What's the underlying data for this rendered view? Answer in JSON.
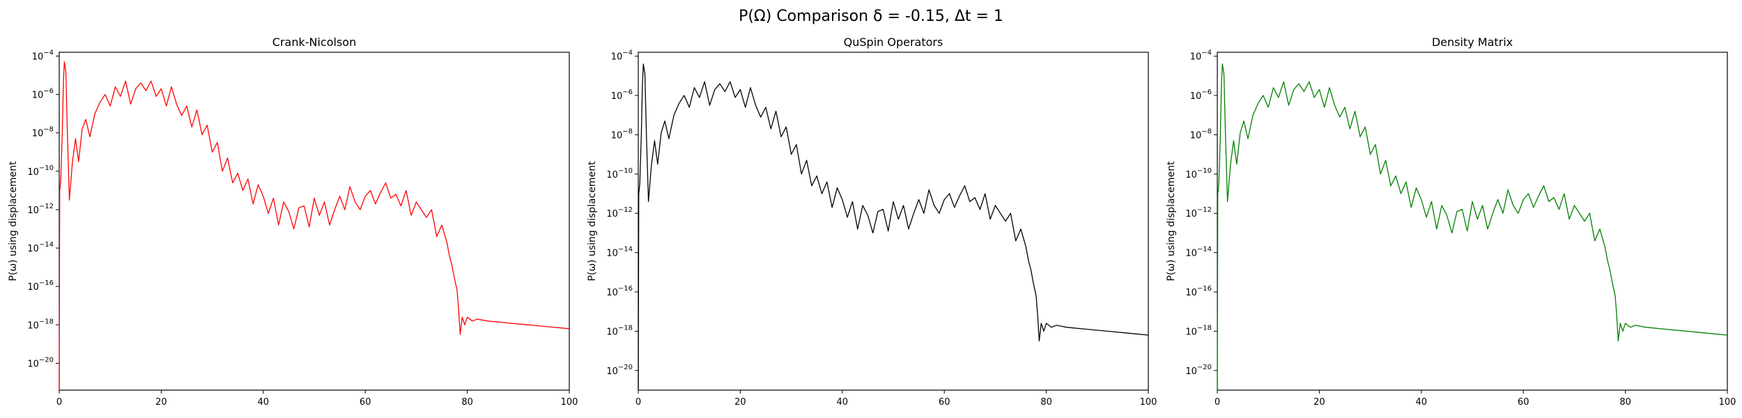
{
  "figure": {
    "title": "P(Ω) Comparison δ = -0.15, Δt = 1"
  },
  "chart_data": [
    {
      "type": "line",
      "title": "Crank-Nicolson",
      "xlabel": "",
      "ylabel": "P(ω) using displacement",
      "xlim": [
        0,
        100
      ],
      "ylim_log10": [
        -21.4,
        -3.8
      ],
      "yscale": "log",
      "x_ticks": [
        "0",
        "20",
        "40",
        "60",
        "80",
        "100"
      ],
      "y_ticks": [
        {
          "base": "10",
          "exp": "−4"
        },
        {
          "base": "10",
          "exp": "−6"
        },
        {
          "base": "10",
          "exp": "−8"
        },
        {
          "base": "10",
          "exp": "−10"
        },
        {
          "base": "10",
          "exp": "−12"
        },
        {
          "base": "10",
          "exp": "−14"
        },
        {
          "base": "10",
          "exp": "−16"
        },
        {
          "base": "10",
          "exp": "−18"
        },
        {
          "base": "10",
          "exp": "−20"
        }
      ],
      "color": "#ff0000",
      "series": [
        {
          "x": [
            0,
            0.1,
            0.3,
            0.6,
            0.8,
            1.0,
            1.3,
            1.6,
            2.0,
            2.6,
            3.2,
            3.8,
            4.5,
            5.2,
            6.0,
            7.0,
            8.0,
            9.0,
            10.0,
            11.0,
            12.0,
            13.0,
            14.0,
            15.0,
            16.0,
            17.0,
            18.0,
            19.0,
            20.0,
            21.0,
            22.0,
            23.0,
            24.0,
            25.0,
            26.0,
            27.0,
            28.0,
            29.0,
            30.0,
            31.0,
            32.0,
            33.0,
            34.0,
            35.0,
            36.0,
            37.0,
            38.0,
            39.0,
            40.0,
            41.0,
            42.0,
            43.0,
            44.0,
            45.0,
            46.0,
            47.0,
            48.0,
            49.0,
            50.0,
            51.0,
            52.0,
            53.0,
            54.0,
            55.0,
            56.0,
            57.0,
            58.0,
            59.0,
            60.0,
            61.0,
            62.0,
            63.0,
            64.0,
            65.0,
            66.0,
            67.0,
            68.0,
            69.0,
            70.0,
            71.0,
            72.0,
            73.0,
            74.0,
            75.0,
            76.0,
            76.5,
            77.0,
            77.5,
            78.0,
            78.3,
            78.6,
            79.0,
            79.5,
            80.0,
            81.0,
            82.0,
            84.0,
            88.0,
            92.0,
            96.0,
            100.0
          ],
          "y_log10": [
            -21.4,
            -11.0,
            -10.5,
            -8.0,
            -5.5,
            -4.3,
            -4.8,
            -8.0,
            -11.5,
            -9.5,
            -8.3,
            -9.5,
            -7.8,
            -7.3,
            -8.2,
            -7.0,
            -6.4,
            -6.0,
            -6.6,
            -5.6,
            -6.1,
            -5.3,
            -6.5,
            -5.7,
            -5.4,
            -5.8,
            -5.3,
            -6.1,
            -5.7,
            -6.6,
            -5.6,
            -6.5,
            -7.1,
            -6.6,
            -7.7,
            -6.8,
            -8.1,
            -7.6,
            -9.0,
            -8.5,
            -10.0,
            -9.3,
            -10.6,
            -10.1,
            -11.0,
            -10.4,
            -11.7,
            -10.7,
            -11.3,
            -12.2,
            -11.4,
            -12.8,
            -11.6,
            -12.1,
            -13.0,
            -11.9,
            -11.8,
            -12.9,
            -11.4,
            -12.3,
            -11.6,
            -12.8,
            -12.0,
            -11.3,
            -12.0,
            -10.8,
            -11.6,
            -12.0,
            -11.3,
            -11.0,
            -11.7,
            -11.1,
            -10.6,
            -11.4,
            -11.2,
            -11.8,
            -11.0,
            -12.3,
            -11.6,
            -12.0,
            -12.4,
            -12.0,
            -13.4,
            -12.8,
            -13.7,
            -14.4,
            -14.9,
            -15.6,
            -16.2,
            -17.2,
            -18.5,
            -17.6,
            -18.0,
            -17.6,
            -17.8,
            -17.7,
            -17.8,
            -17.9,
            -18.0,
            -18.1,
            -18.2
          ]
        }
      ]
    },
    {
      "type": "line",
      "title": "QuSpin Operators",
      "xlabel": "",
      "ylabel": "P(ω) using displacement",
      "xlim": [
        0,
        100
      ],
      "ylim_log10": [
        -21.0,
        -3.8
      ],
      "yscale": "log",
      "x_ticks": [
        "0",
        "20",
        "40",
        "60",
        "80",
        "100"
      ],
      "y_ticks": [
        {
          "base": "10",
          "exp": "−4"
        },
        {
          "base": "10",
          "exp": "−6"
        },
        {
          "base": "10",
          "exp": "−8"
        },
        {
          "base": "10",
          "exp": "−10"
        },
        {
          "base": "10",
          "exp": "−12"
        },
        {
          "base": "10",
          "exp": "−14"
        },
        {
          "base": "10",
          "exp": "−16"
        },
        {
          "base": "10",
          "exp": "−18"
        },
        {
          "base": "10",
          "exp": "−20"
        }
      ],
      "color": "#000000",
      "series": [
        {
          "x": [
            0,
            0.1,
            0.3,
            0.6,
            0.8,
            1.0,
            1.3,
            1.6,
            2.0,
            2.6,
            3.2,
            3.8,
            4.5,
            5.2,
            6.0,
            7.0,
            8.0,
            9.0,
            10.0,
            11.0,
            12.0,
            13.0,
            14.0,
            15.0,
            16.0,
            17.0,
            18.0,
            19.0,
            20.0,
            21.0,
            22.0,
            23.0,
            24.0,
            25.0,
            26.0,
            27.0,
            28.0,
            29.0,
            30.0,
            31.0,
            32.0,
            33.0,
            34.0,
            35.0,
            36.0,
            37.0,
            38.0,
            39.0,
            40.0,
            41.0,
            42.0,
            43.0,
            44.0,
            45.0,
            46.0,
            47.0,
            48.0,
            49.0,
            50.0,
            51.0,
            52.0,
            53.0,
            54.0,
            55.0,
            56.0,
            57.0,
            58.0,
            59.0,
            60.0,
            61.0,
            62.0,
            63.0,
            64.0,
            65.0,
            66.0,
            67.0,
            68.0,
            69.0,
            70.0,
            71.0,
            72.0,
            73.0,
            74.0,
            75.0,
            76.0,
            76.5,
            77.0,
            77.5,
            78.0,
            78.3,
            78.6,
            79.0,
            79.5,
            80.0,
            81.0,
            82.0,
            84.0,
            88.0,
            92.0,
            96.0,
            100.0
          ],
          "y_log10": [
            -21.0,
            -11.0,
            -10.5,
            -8.0,
            -5.5,
            -4.4,
            -4.9,
            -8.0,
            -11.4,
            -9.5,
            -8.3,
            -9.5,
            -7.9,
            -7.3,
            -8.2,
            -7.0,
            -6.4,
            -6.0,
            -6.6,
            -5.6,
            -6.1,
            -5.3,
            -6.5,
            -5.7,
            -5.4,
            -5.8,
            -5.3,
            -6.1,
            -5.7,
            -6.6,
            -5.6,
            -6.5,
            -7.1,
            -6.6,
            -7.7,
            -6.8,
            -8.1,
            -7.6,
            -9.0,
            -8.5,
            -10.0,
            -9.3,
            -10.6,
            -10.1,
            -11.0,
            -10.4,
            -11.7,
            -10.7,
            -11.3,
            -12.2,
            -11.4,
            -12.8,
            -11.6,
            -12.1,
            -13.0,
            -11.9,
            -11.8,
            -12.9,
            -11.4,
            -12.3,
            -11.6,
            -12.8,
            -12.0,
            -11.3,
            -12.0,
            -10.8,
            -11.6,
            -12.0,
            -11.3,
            -11.0,
            -11.7,
            -11.1,
            -10.6,
            -11.4,
            -11.2,
            -11.8,
            -11.0,
            -12.3,
            -11.6,
            -12.0,
            -12.4,
            -12.0,
            -13.4,
            -12.8,
            -13.7,
            -14.4,
            -14.9,
            -15.6,
            -16.2,
            -17.2,
            -18.5,
            -17.6,
            -18.0,
            -17.6,
            -17.8,
            -17.7,
            -17.8,
            -17.9,
            -18.0,
            -18.1,
            -18.2
          ]
        }
      ]
    },
    {
      "type": "line",
      "title": "Density Matrix",
      "xlabel": "",
      "ylabel": "P(ω) using displacement",
      "xlim": [
        0,
        100
      ],
      "ylim_log10": [
        -21.0,
        -3.8
      ],
      "yscale": "log",
      "x_ticks": [
        "0",
        "20",
        "40",
        "60",
        "80",
        "100"
      ],
      "y_ticks": [
        {
          "base": "10",
          "exp": "−4"
        },
        {
          "base": "10",
          "exp": "−6"
        },
        {
          "base": "10",
          "exp": "−8"
        },
        {
          "base": "10",
          "exp": "−10"
        },
        {
          "base": "10",
          "exp": "−12"
        },
        {
          "base": "10",
          "exp": "−14"
        },
        {
          "base": "10",
          "exp": "−16"
        },
        {
          "base": "10",
          "exp": "−18"
        },
        {
          "base": "10",
          "exp": "−20"
        }
      ],
      "color": "#008000",
      "series": [
        {
          "x": [
            0,
            0.1,
            0.3,
            0.6,
            0.8,
            1.0,
            1.3,
            1.6,
            2.0,
            2.6,
            3.2,
            3.8,
            4.5,
            5.2,
            6.0,
            7.0,
            8.0,
            9.0,
            10.0,
            11.0,
            12.0,
            13.0,
            14.0,
            15.0,
            16.0,
            17.0,
            18.0,
            19.0,
            20.0,
            21.0,
            22.0,
            23.0,
            24.0,
            25.0,
            26.0,
            27.0,
            28.0,
            29.0,
            30.0,
            31.0,
            32.0,
            33.0,
            34.0,
            35.0,
            36.0,
            37.0,
            38.0,
            39.0,
            40.0,
            41.0,
            42.0,
            43.0,
            44.0,
            45.0,
            46.0,
            47.0,
            48.0,
            49.0,
            50.0,
            51.0,
            52.0,
            53.0,
            54.0,
            55.0,
            56.0,
            57.0,
            58.0,
            59.0,
            60.0,
            61.0,
            62.0,
            63.0,
            64.0,
            65.0,
            66.0,
            67.0,
            68.0,
            69.0,
            70.0,
            71.0,
            72.0,
            73.0,
            74.0,
            75.0,
            76.0,
            76.5,
            77.0,
            77.5,
            78.0,
            78.3,
            78.6,
            79.0,
            79.5,
            80.0,
            81.0,
            82.0,
            84.0,
            88.0,
            92.0,
            96.0,
            100.0
          ],
          "y_log10": [
            -21.0,
            -11.0,
            -10.5,
            -8.0,
            -5.5,
            -4.4,
            -4.9,
            -8.0,
            -11.4,
            -9.5,
            -8.3,
            -9.5,
            -7.9,
            -7.3,
            -8.2,
            -7.0,
            -6.4,
            -6.0,
            -6.6,
            -5.6,
            -6.1,
            -5.3,
            -6.5,
            -5.7,
            -5.4,
            -5.8,
            -5.3,
            -6.1,
            -5.7,
            -6.6,
            -5.6,
            -6.5,
            -7.1,
            -6.6,
            -7.7,
            -6.8,
            -8.1,
            -7.6,
            -9.0,
            -8.5,
            -10.0,
            -9.3,
            -10.6,
            -10.1,
            -11.0,
            -10.4,
            -11.7,
            -10.7,
            -11.3,
            -12.2,
            -11.4,
            -12.8,
            -11.6,
            -12.1,
            -13.0,
            -11.9,
            -11.8,
            -12.9,
            -11.4,
            -12.3,
            -11.6,
            -12.8,
            -12.0,
            -11.3,
            -12.0,
            -10.8,
            -11.6,
            -12.0,
            -11.3,
            -11.0,
            -11.7,
            -11.1,
            -10.6,
            -11.4,
            -11.2,
            -11.8,
            -11.0,
            -12.3,
            -11.6,
            -12.0,
            -12.4,
            -12.0,
            -13.4,
            -12.8,
            -13.7,
            -14.4,
            -14.9,
            -15.6,
            -16.2,
            -17.2,
            -18.5,
            -17.6,
            -18.0,
            -17.6,
            -17.8,
            -17.7,
            -17.8,
            -17.9,
            -18.0,
            -18.1,
            -18.2
          ]
        }
      ]
    }
  ]
}
